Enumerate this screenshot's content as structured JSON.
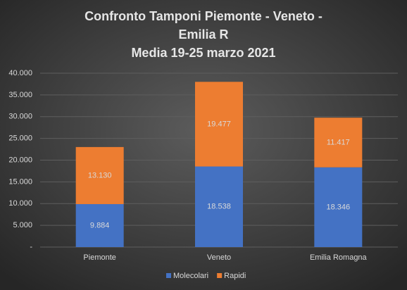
{
  "chart_data": {
    "type": "stacked_bar",
    "title": [
      "Confronto  Tamponi  Piemonte  - Veneto  -",
      "Emilia  R",
      "Media  19-25  marzo  2021"
    ],
    "categories": [
      "Piemonte",
      "Veneto",
      "Emilia Romagna"
    ],
    "series": [
      {
        "name": "Molecolari",
        "color": "#4472c4",
        "values": [
          9884,
          18538,
          18346
        ],
        "value_labels": [
          "9.884",
          "18.538",
          "18.346"
        ]
      },
      {
        "name": "Rapidi",
        "color": "#ed7d31",
        "values": [
          13130,
          19477,
          11417
        ],
        "value_labels": [
          "13.130",
          "19.477",
          "11.417"
        ]
      }
    ],
    "ylim": [
      0,
      40000
    ],
    "yticks": [
      {
        "value": 0,
        "label": "-"
      },
      {
        "value": 5000,
        "label": "5.000"
      },
      {
        "value": 10000,
        "label": "10.000"
      },
      {
        "value": 15000,
        "label": "15.000"
      },
      {
        "value": 20000,
        "label": "20.000"
      },
      {
        "value": 25000,
        "label": "25.000"
      },
      {
        "value": 30000,
        "label": "30.000"
      },
      {
        "value": 35000,
        "label": "35.000"
      },
      {
        "value": 40000,
        "label": "40.000"
      }
    ],
    "grid": true,
    "legend": "bottom"
  }
}
